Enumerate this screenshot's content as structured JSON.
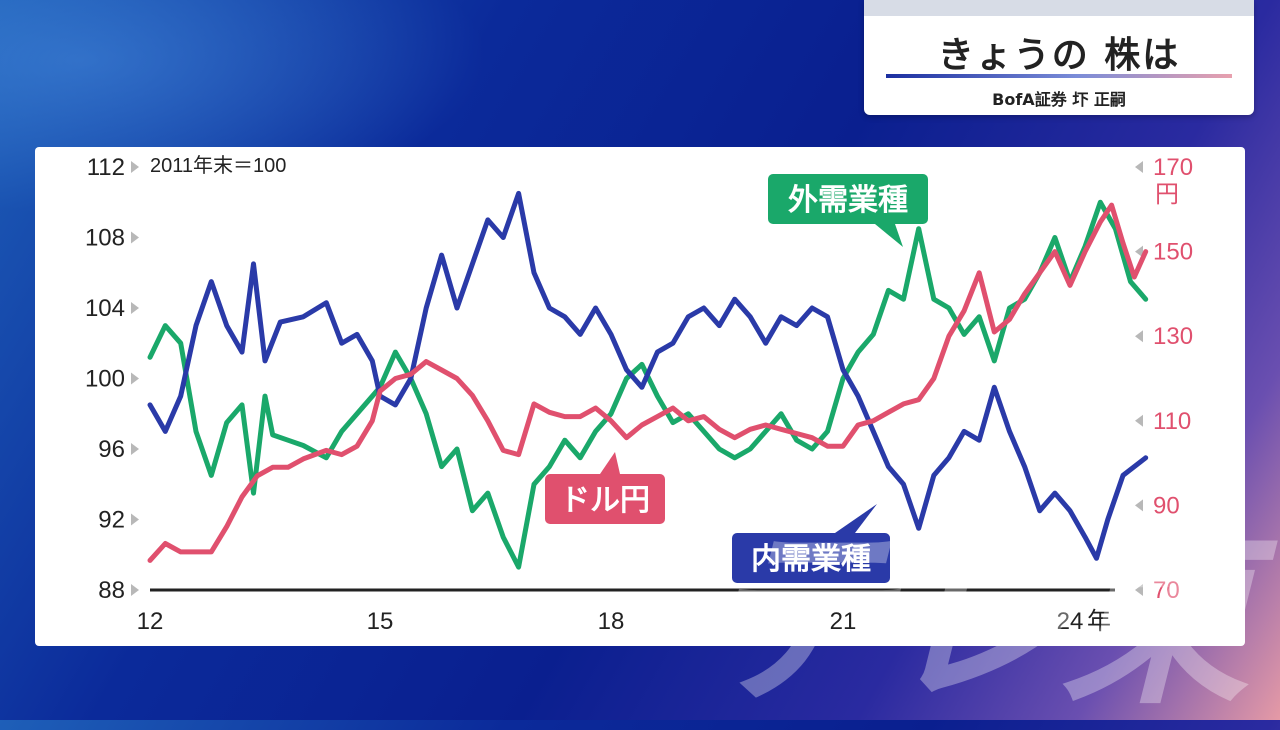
{
  "header": {
    "title": "きょうの 株は",
    "speaker": "BofA証券 圷 正嗣"
  },
  "watermark": "テレ東",
  "colors": {
    "domestic": "#2a3aa8",
    "external": "#1aa86a",
    "usdjpy": "#e0506e",
    "axis": "#222222"
  },
  "chart_data": {
    "type": "line",
    "note": "2011年末＝100",
    "x_unit": "年",
    "x_ticks": [
      "12",
      "15",
      "18",
      "21",
      "24"
    ],
    "y_left": {
      "ticks": [
        "112",
        "108",
        "104",
        "100",
        "96",
        "92",
        "88"
      ],
      "range": [
        88,
        112
      ]
    },
    "y_right": {
      "ticks": [
        "170",
        "150",
        "130",
        "110",
        "90",
        "70"
      ],
      "unit": "円",
      "range": [
        70,
        170
      ]
    },
    "series": [
      {
        "name": "外需業種",
        "axis": "left",
        "points": [
          [
            2012.0,
            101.2
          ],
          [
            2012.2,
            103.0
          ],
          [
            2012.4,
            102.0
          ],
          [
            2012.6,
            97.0
          ],
          [
            2012.8,
            94.5
          ],
          [
            2013.0,
            97.5
          ],
          [
            2013.2,
            98.5
          ],
          [
            2013.35,
            93.5
          ],
          [
            2013.5,
            99.0
          ],
          [
            2013.6,
            96.8
          ],
          [
            2013.8,
            96.5
          ],
          [
            2014.0,
            96.2
          ],
          [
            2014.3,
            95.5
          ],
          [
            2014.5,
            97.0
          ],
          [
            2014.7,
            98.0
          ],
          [
            2015.0,
            99.5
          ],
          [
            2015.2,
            101.5
          ],
          [
            2015.4,
            100.0
          ],
          [
            2015.6,
            98.0
          ],
          [
            2015.8,
            95.0
          ],
          [
            2016.0,
            96.0
          ],
          [
            2016.2,
            92.5
          ],
          [
            2016.4,
            93.5
          ],
          [
            2016.6,
            91.0
          ],
          [
            2016.8,
            89.3
          ],
          [
            2017.0,
            94.0
          ],
          [
            2017.2,
            95.0
          ],
          [
            2017.4,
            96.5
          ],
          [
            2017.6,
            95.5
          ],
          [
            2017.8,
            97.0
          ],
          [
            2018.0,
            98.0
          ],
          [
            2018.2,
            100.0
          ],
          [
            2018.4,
            100.8
          ],
          [
            2018.6,
            99.0
          ],
          [
            2018.8,
            97.5
          ],
          [
            2019.0,
            98.0
          ],
          [
            2019.2,
            97.0
          ],
          [
            2019.4,
            96.0
          ],
          [
            2019.6,
            95.5
          ],
          [
            2019.8,
            96.0
          ],
          [
            2020.0,
            97.0
          ],
          [
            2020.2,
            98.0
          ],
          [
            2020.4,
            96.5
          ],
          [
            2020.6,
            96.0
          ],
          [
            2020.8,
            97.0
          ],
          [
            2021.0,
            100.0
          ],
          [
            2021.2,
            101.5
          ],
          [
            2021.4,
            102.5
          ],
          [
            2021.6,
            105.0
          ],
          [
            2021.8,
            104.5
          ],
          [
            2022.0,
            108.5
          ],
          [
            2022.2,
            104.5
          ],
          [
            2022.4,
            104.0
          ],
          [
            2022.6,
            102.5
          ],
          [
            2022.8,
            103.5
          ],
          [
            2023.0,
            101.0
          ],
          [
            2023.2,
            104.0
          ],
          [
            2023.4,
            104.5
          ],
          [
            2023.6,
            106.0
          ],
          [
            2023.8,
            108.0
          ],
          [
            2024.0,
            105.5
          ],
          [
            2024.2,
            107.5
          ],
          [
            2024.4,
            110.0
          ],
          [
            2024.6,
            108.5
          ],
          [
            2024.8,
            105.5
          ],
          [
            2025.0,
            104.5
          ]
        ]
      },
      {
        "name": "内需業種",
        "axis": "left",
        "points": [
          [
            2012.0,
            98.5
          ],
          [
            2012.2,
            97.0
          ],
          [
            2012.4,
            99.0
          ],
          [
            2012.6,
            103.0
          ],
          [
            2012.8,
            105.5
          ],
          [
            2013.0,
            103.0
          ],
          [
            2013.2,
            101.5
          ],
          [
            2013.35,
            106.5
          ],
          [
            2013.5,
            101.0
          ],
          [
            2013.7,
            103.2
          ],
          [
            2014.0,
            103.5
          ],
          [
            2014.3,
            104.3
          ],
          [
            2014.5,
            102.0
          ],
          [
            2014.7,
            102.5
          ],
          [
            2014.9,
            101.0
          ],
          [
            2015.0,
            99.0
          ],
          [
            2015.2,
            98.5
          ],
          [
            2015.4,
            100.0
          ],
          [
            2015.6,
            104.0
          ],
          [
            2015.8,
            107.0
          ],
          [
            2016.0,
            104.0
          ],
          [
            2016.2,
            106.5
          ],
          [
            2016.4,
            109.0
          ],
          [
            2016.6,
            108.0
          ],
          [
            2016.8,
            110.5
          ],
          [
            2017.0,
            106.0
          ],
          [
            2017.2,
            104.0
          ],
          [
            2017.4,
            103.5
          ],
          [
            2017.6,
            102.5
          ],
          [
            2017.8,
            104.0
          ],
          [
            2018.0,
            102.5
          ],
          [
            2018.2,
            100.5
          ],
          [
            2018.4,
            99.5
          ],
          [
            2018.6,
            101.5
          ],
          [
            2018.8,
            102.0
          ],
          [
            2019.0,
            103.5
          ],
          [
            2019.2,
            104.0
          ],
          [
            2019.4,
            103.0
          ],
          [
            2019.6,
            104.5
          ],
          [
            2019.8,
            103.5
          ],
          [
            2020.0,
            102.0
          ],
          [
            2020.2,
            103.5
          ],
          [
            2020.4,
            103.0
          ],
          [
            2020.6,
            104.0
          ],
          [
            2020.8,
            103.5
          ],
          [
            2021.0,
            100.5
          ],
          [
            2021.2,
            99.0
          ],
          [
            2021.4,
            97.0
          ],
          [
            2021.6,
            95.0
          ],
          [
            2021.8,
            94.0
          ],
          [
            2022.0,
            91.5
          ],
          [
            2022.2,
            94.5
          ],
          [
            2022.4,
            95.5
          ],
          [
            2022.6,
            97.0
          ],
          [
            2022.8,
            96.5
          ],
          [
            2023.0,
            99.5
          ],
          [
            2023.2,
            97.0
          ],
          [
            2023.4,
            95.0
          ],
          [
            2023.6,
            92.5
          ],
          [
            2023.8,
            93.5
          ],
          [
            2024.0,
            92.5
          ],
          [
            2024.2,
            91.0
          ],
          [
            2024.35,
            89.8
          ],
          [
            2024.5,
            92.0
          ],
          [
            2024.7,
            94.5
          ],
          [
            2025.0,
            95.5
          ]
        ]
      },
      {
        "name": "ドル円",
        "axis": "right",
        "points": [
          [
            2012.0,
            77
          ],
          [
            2012.2,
            81
          ],
          [
            2012.4,
            79
          ],
          [
            2012.6,
            79
          ],
          [
            2012.8,
            79
          ],
          [
            2013.0,
            85
          ],
          [
            2013.2,
            92
          ],
          [
            2013.4,
            97
          ],
          [
            2013.6,
            99
          ],
          [
            2013.8,
            99
          ],
          [
            2014.0,
            101
          ],
          [
            2014.3,
            103
          ],
          [
            2014.5,
            102
          ],
          [
            2014.7,
            104
          ],
          [
            2014.9,
            110
          ],
          [
            2015.0,
            117
          ],
          [
            2015.2,
            120
          ],
          [
            2015.4,
            121
          ],
          [
            2015.6,
            124
          ],
          [
            2015.8,
            122
          ],
          [
            2016.0,
            120
          ],
          [
            2016.2,
            116
          ],
          [
            2016.4,
            110
          ],
          [
            2016.6,
            103
          ],
          [
            2016.8,
            102
          ],
          [
            2017.0,
            114
          ],
          [
            2017.2,
            112
          ],
          [
            2017.4,
            111
          ],
          [
            2017.6,
            111
          ],
          [
            2017.8,
            113
          ],
          [
            2018.0,
            110
          ],
          [
            2018.2,
            106
          ],
          [
            2018.4,
            109
          ],
          [
            2018.6,
            111
          ],
          [
            2018.8,
            113
          ],
          [
            2019.0,
            110
          ],
          [
            2019.2,
            111
          ],
          [
            2019.4,
            108
          ],
          [
            2019.6,
            106
          ],
          [
            2019.8,
            108
          ],
          [
            2020.0,
            109
          ],
          [
            2020.2,
            108
          ],
          [
            2020.4,
            107
          ],
          [
            2020.6,
            106
          ],
          [
            2020.8,
            104
          ],
          [
            2021.0,
            104
          ],
          [
            2021.2,
            109
          ],
          [
            2021.4,
            110
          ],
          [
            2021.6,
            112
          ],
          [
            2021.8,
            114
          ],
          [
            2022.0,
            115
          ],
          [
            2022.2,
            120
          ],
          [
            2022.4,
            130
          ],
          [
            2022.6,
            136
          ],
          [
            2022.8,
            145
          ],
          [
            2023.0,
            131
          ],
          [
            2023.2,
            134
          ],
          [
            2023.4,
            140
          ],
          [
            2023.6,
            145
          ],
          [
            2023.8,
            150
          ],
          [
            2024.0,
            142
          ],
          [
            2024.2,
            150
          ],
          [
            2024.4,
            157
          ],
          [
            2024.55,
            161
          ],
          [
            2024.7,
            152
          ],
          [
            2024.85,
            144
          ],
          [
            2025.0,
            150
          ]
        ]
      }
    ],
    "labels": [
      {
        "text": "外需業種",
        "series": "外需業種"
      },
      {
        "text": "ドル円",
        "series": "ドル円"
      },
      {
        "text": "内需業種",
        "series": "内需業種"
      }
    ]
  }
}
